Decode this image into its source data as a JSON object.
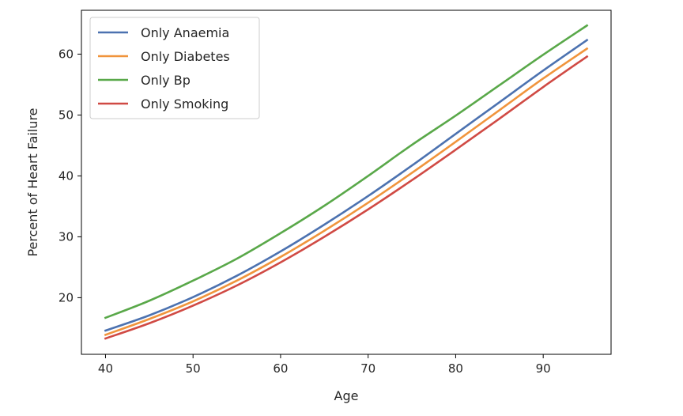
{
  "chart_data": {
    "type": "line",
    "title": "",
    "xlabel": "Age",
    "ylabel": "Percent of Heart Failure",
    "xlim": [
      37.25,
      97.75
    ],
    "ylim": [
      10.7,
      67.2
    ],
    "xticks": [
      40,
      50,
      60,
      70,
      80,
      90
    ],
    "yticks": [
      20,
      30,
      40,
      50,
      60
    ],
    "grid": false,
    "legend_position": "top-left",
    "x": [
      40,
      45,
      50,
      55,
      60,
      65,
      70,
      75,
      80,
      85,
      90,
      95
    ],
    "series": [
      {
        "name": "Only Anaemia",
        "color": "#4c72b0",
        "values": [
          14.6,
          17.1,
          20.1,
          23.6,
          27.6,
          32.0,
          36.7,
          41.7,
          46.9,
          52.1,
          57.3,
          62.3
        ]
      },
      {
        "name": "Only Diabetes",
        "color": "#f0943c",
        "values": [
          13.9,
          16.5,
          19.4,
          22.8,
          26.7,
          31.0,
          35.6,
          40.5,
          45.6,
          50.8,
          56.0,
          60.9
        ]
      },
      {
        "name": "Only Bp",
        "color": "#59a849",
        "values": [
          16.7,
          19.5,
          22.8,
          26.4,
          30.6,
          35.1,
          40.0,
          45.1,
          49.9,
          54.9,
          59.9,
          64.7
        ]
      },
      {
        "name": "Only Smoking",
        "color": "#d04a44",
        "values": [
          13.3,
          15.8,
          18.7,
          22.0,
          25.8,
          30.0,
          34.5,
          39.3,
          44.3,
          49.4,
          54.6,
          59.6
        ]
      }
    ]
  }
}
